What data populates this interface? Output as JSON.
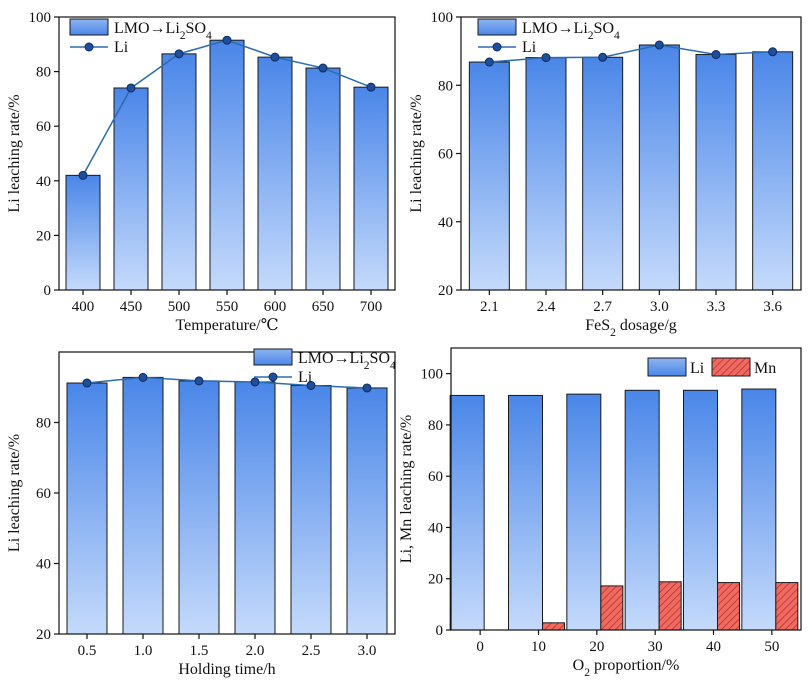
{
  "colors": {
    "bar_top": "#4a86e8",
    "bar_bottom": "#c5dafb",
    "line": "#2b6cb0",
    "marker": "#1f4e9a",
    "mn": "#e0483e"
  },
  "chart_data": [
    {
      "type": "bar+line",
      "categories": [
        "400",
        "450",
        "500",
        "550",
        "600",
        "650",
        "700"
      ],
      "series": [
        {
          "name": "LMO→Li₂SO₄",
          "kind": "bar",
          "values": [
            42.0,
            74.0,
            86.5,
            91.5,
            85.3,
            81.3,
            74.3
          ]
        },
        {
          "name": "Li",
          "kind": "line",
          "values": [
            42.0,
            74.0,
            86.5,
            91.5,
            85.3,
            81.3,
            74.3
          ]
        }
      ],
      "xlabel": "Temperature/℃",
      "ylabel": "Li leaching rate/%",
      "ylim": [
        0,
        100
      ],
      "yticks": [
        0,
        20,
        40,
        60,
        80,
        100
      ],
      "legend": "top-left",
      "grid": false
    },
    {
      "type": "bar+line",
      "categories": [
        "2.1",
        "2.4",
        "2.7",
        "3.0",
        "3.3",
        "3.6"
      ],
      "series": [
        {
          "name": "LMO→Li₂SO₄",
          "kind": "bar",
          "values": [
            86.8,
            88.1,
            88.2,
            91.8,
            89.0,
            89.8
          ]
        },
        {
          "name": "Li",
          "kind": "line",
          "values": [
            86.8,
            88.1,
            88.2,
            91.8,
            89.0,
            89.8
          ]
        }
      ],
      "xlabel": "FeS₂ dosage/g",
      "ylabel": "Li leaching rate/%",
      "ylim": [
        20,
        100
      ],
      "yticks": [
        20,
        40,
        60,
        80,
        100
      ],
      "legend": "top-left",
      "grid": false
    },
    {
      "type": "bar+line",
      "categories": [
        "0.5",
        "1.0",
        "1.5",
        "2.0",
        "2.5",
        "3.0"
      ],
      "series": [
        {
          "name": "LMO→Li₂SO₄",
          "kind": "bar",
          "values": [
            91.2,
            92.8,
            91.8,
            91.5,
            90.5,
            89.8
          ]
        },
        {
          "name": "Li",
          "kind": "line",
          "values": [
            91.2,
            92.8,
            91.8,
            91.5,
            90.5,
            89.8
          ]
        }
      ],
      "xlabel": "Holding time/h",
      "ylabel": "Li leaching rate/%",
      "ylim": [
        20,
        100
      ],
      "yticks": [
        20,
        40,
        60,
        80
      ],
      "legend": "top-right",
      "grid": false
    },
    {
      "type": "bar",
      "categories": [
        "0",
        "10",
        "20",
        "30",
        "40",
        "50"
      ],
      "series": [
        {
          "name": "Li",
          "kind": "bar",
          "values": [
            91.5,
            91.5,
            92.0,
            93.5,
            93.5,
            94.0
          ]
        },
        {
          "name": "Mn",
          "kind": "bar-hatched",
          "values": [
            0,
            2.8,
            17.2,
            18.8,
            18.5,
            18.5
          ]
        }
      ],
      "xlabel": "O₂ proportion/%",
      "ylabel": "Li, Mn leaching rate/%",
      "ylim": [
        0,
        110
      ],
      "yticks": [
        0,
        20,
        40,
        60,
        80,
        100
      ],
      "legend": "top-right",
      "grid": false
    }
  ]
}
